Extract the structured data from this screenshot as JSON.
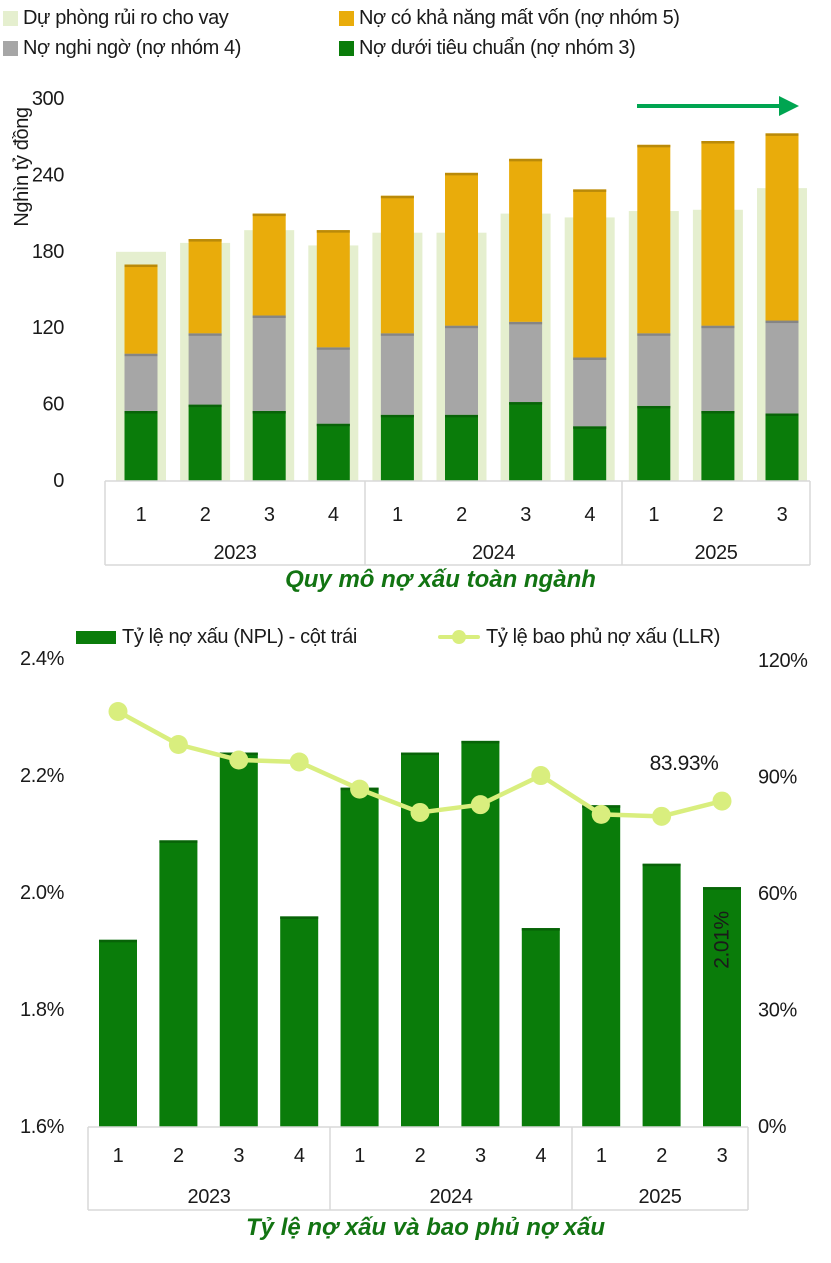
{
  "styles": {
    "title_color": "#127412",
    "axis_line_color": "#d9d9d9",
    "text_color": "#1a1a1a",
    "arrow_color": "#00a551"
  },
  "chart_data": [
    {
      "type": "bar",
      "subtype": "stacked-with-background-bars",
      "title": "Quy mô nợ xấu toàn ngành",
      "ylabel": "Nghìn tỷ đồng",
      "ylim": [
        0,
        300
      ],
      "yticks": [
        0,
        60,
        120,
        180,
        240,
        300
      ],
      "categories": [
        "1",
        "2",
        "3",
        "4",
        "1",
        "2",
        "3",
        "4",
        "1",
        "2",
        "3"
      ],
      "year_groups": [
        {
          "label": "2023",
          "count": 4
        },
        {
          "label": "2024",
          "count": 4
        },
        {
          "label": "2025",
          "count": 3
        }
      ],
      "grid": false,
      "legend_position": "top",
      "trend_arrow": {
        "present": true,
        "color": "#00a551"
      },
      "series": [
        {
          "name": "Dự phòng rủi ro cho vay",
          "role": "background",
          "color": "#e5efcf",
          "values": [
            180,
            187,
            197,
            185,
            195,
            195,
            210,
            207,
            212,
            213,
            230
          ]
        },
        {
          "name": "Nợ dưới tiêu chuẩn (nợ nhóm 3)",
          "color": "#0a7c0a",
          "values": [
            55,
            60,
            55,
            45,
            52,
            52,
            62,
            43,
            59,
            55,
            53
          ]
        },
        {
          "name": "Nợ nghi ngờ (nợ nhóm 4)",
          "color": "#a6a6a6",
          "values": [
            45,
            56,
            75,
            60,
            64,
            70,
            63,
            54,
            57,
            67,
            73
          ]
        },
        {
          "name": "Nợ có khả năng mất vốn (nợ nhóm 5)",
          "color": "#e9ac0b",
          "values": [
            70,
            74,
            80,
            92,
            108,
            120,
            128,
            132,
            148,
            145,
            147
          ]
        }
      ]
    },
    {
      "type": "bar+line",
      "title": "Tỷ lệ nợ xấu và bao phủ nợ xấu",
      "categories": [
        "1",
        "2",
        "3",
        "4",
        "1",
        "2",
        "3",
        "4",
        "1",
        "2",
        "3"
      ],
      "year_groups": [
        {
          "label": "2023",
          "count": 4
        },
        {
          "label": "2024",
          "count": 4
        },
        {
          "label": "2025",
          "count": 3
        }
      ],
      "left_axis": {
        "min": 1.6,
        "max": 2.4,
        "tick_values": [
          2.4,
          2.2,
          2.0,
          1.8,
          1.6
        ],
        "format": "percent1"
      },
      "right_axis": {
        "min": 0,
        "max": 120,
        "tick_values": [
          120,
          90,
          60,
          30,
          0
        ],
        "format": "percent0"
      },
      "grid": false,
      "legend_position": "top",
      "series": [
        {
          "name": "Tỷ lệ nợ xấu (NPL) - cột trái",
          "type": "bar",
          "axis": "left",
          "color": "#0a7c0a",
          "values": [
            1.92,
            2.09,
            2.24,
            1.96,
            2.18,
            2.24,
            2.26,
            1.94,
            2.15,
            2.05,
            2.01
          ]
        },
        {
          "name": "Tỷ lệ bao phủ nợ xấu (LLR)",
          "type": "line",
          "axis": "right",
          "color": "#d9ee7e",
          "values": [
            107,
            98.5,
            94.5,
            94,
            87,
            81,
            83,
            90.5,
            80.5,
            80,
            83.93
          ]
        }
      ],
      "annotations": [
        {
          "text": "83.93%",
          "color": "#e9e24e",
          "target": "last-line-point"
        },
        {
          "text": "2.01%",
          "color": "#ffffff",
          "target": "last-bar"
        }
      ]
    }
  ]
}
